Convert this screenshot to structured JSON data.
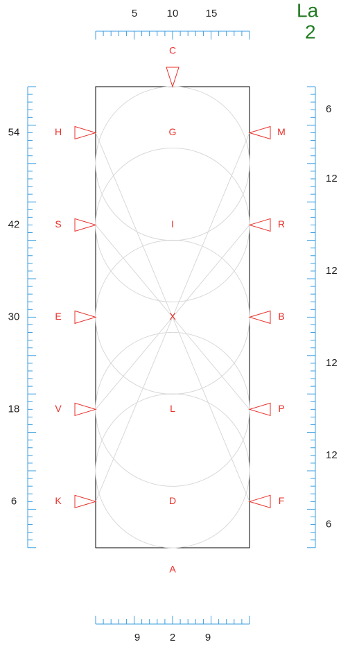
{
  "header": {
    "title_line1": "La",
    "title_line2": "2"
  },
  "arena": {
    "top_letter": "C",
    "bottom_letter": "A",
    "left_letters": [
      "H",
      "S",
      "E",
      "V",
      "K"
    ],
    "right_letters": [
      "M",
      "R",
      "B",
      "P",
      "F"
    ],
    "center_letters": [
      "G",
      "I",
      "X",
      "L",
      "D"
    ]
  },
  "rulers": {
    "top": [
      "5",
      "10",
      "15"
    ],
    "bottom": [
      "9",
      "2",
      "9"
    ],
    "left": [
      "54",
      "42",
      "30",
      "18",
      "6"
    ],
    "right": [
      "6",
      "12",
      "12",
      "12",
      "12",
      "6"
    ]
  }
}
